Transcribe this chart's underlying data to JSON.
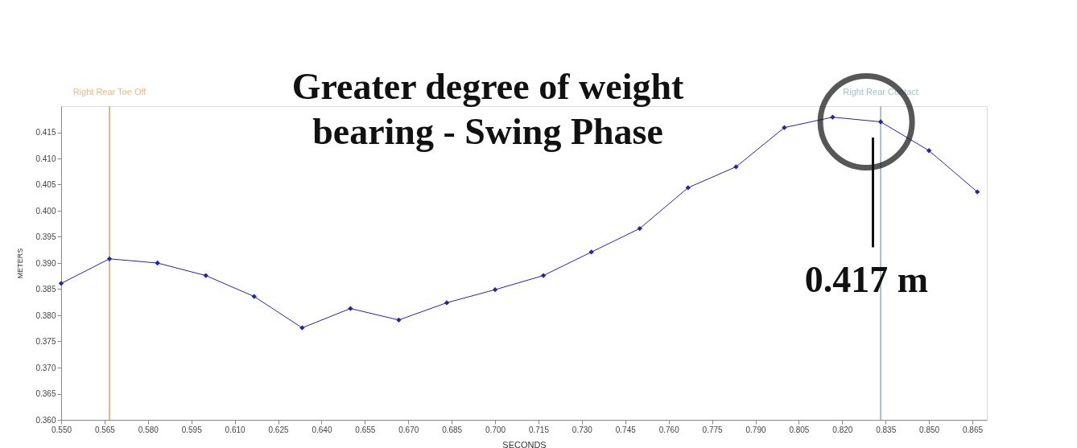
{
  "chart_data": {
    "type": "line",
    "title": "Greater degree of weight bearing - Swing Phase",
    "xlabel": "SECONDS",
    "ylabel": "METERS",
    "x": [
      0.55,
      0.5667,
      0.5833,
      0.6,
      0.6167,
      0.6333,
      0.65,
      0.6667,
      0.6833,
      0.7,
      0.7167,
      0.7333,
      0.75,
      0.7667,
      0.7833,
      0.8,
      0.8167,
      0.8333,
      0.85,
      0.8667
    ],
    "series": [
      {
        "color": "#2424a8",
        "values": [
          0.3861,
          0.3908,
          0.39,
          0.3876,
          0.3836,
          0.3776,
          0.3813,
          0.3791,
          0.3824,
          0.3849,
          0.3876,
          0.3921,
          0.3966,
          0.4044,
          0.4084,
          0.4159,
          0.4179,
          0.417,
          0.4115,
          0.4036
        ]
      }
    ],
    "xlim": [
      0.55,
      0.87
    ],
    "xticks": [
      {
        "value": 0.55,
        "label": "0.550"
      },
      0.565,
      {
        "value": 0.58,
        "label": "0.580"
      },
      0.595,
      {
        "value": 0.61,
        "label": "0.610"
      },
      0.625,
      {
        "value": 0.64,
        "label": "0.640"
      },
      0.655,
      {
        "value": 0.67,
        "label": "0.670"
      },
      0.685,
      {
        "value": 0.7,
        "label": "0.700"
      },
      0.715,
      {
        "value": 0.73,
        "label": "0.730"
      },
      0.745,
      {
        "value": 0.76,
        "label": "0.760"
      },
      0.775,
      {
        "value": 0.79,
        "label": "0.790"
      },
      0.805,
      {
        "value": 0.82,
        "label": "0.820"
      },
      0.835,
      {
        "value": 0.85,
        "label": "0.850"
      },
      0.865
    ],
    "ylim": [
      0.36,
      0.42
    ],
    "yticks": [
      {
        "value": 0.36,
        "label": "0.360"
      },
      0.365,
      {
        "value": 0.37,
        "label": "0.370"
      },
      0.375,
      {
        "value": 0.38,
        "label": "0.380"
      },
      0.385,
      {
        "value": 0.39,
        "label": "0.390"
      },
      0.395,
      {
        "value": 0.4,
        "label": "0.400"
      },
      0.405,
      {
        "value": 0.41,
        "label": "0.410"
      },
      0.415
    ],
    "ref_lines": [
      {
        "axis": "x",
        "value": 0.5667,
        "label": "Right Rear Toe Off",
        "color": "#dcbc8c"
      },
      {
        "axis": "x",
        "value": 0.8333,
        "label": "Right Rear Contact",
        "color": "#a8c0c4"
      }
    ],
    "annotations": [
      "0.417 m"
    ],
    "marker": "diamond",
    "grid": false
  }
}
